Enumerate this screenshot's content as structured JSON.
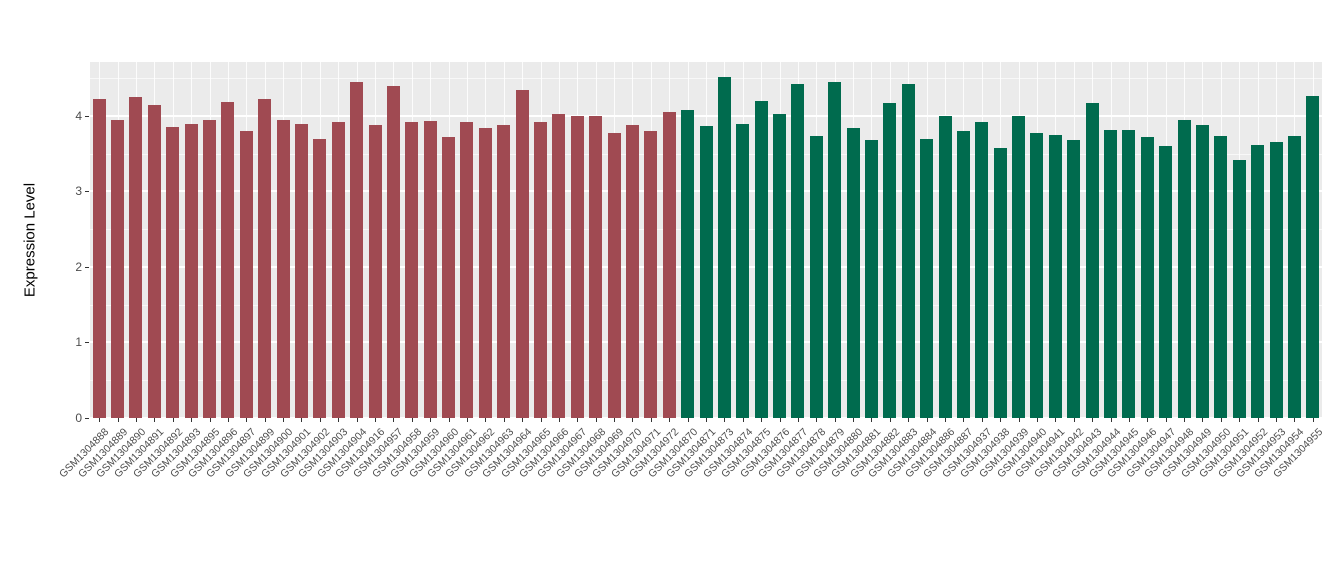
{
  "chart_data": {
    "type": "bar",
    "title": "",
    "xlabel": "",
    "ylabel": "Expression Level",
    "ylim": [
      0,
      4.715
    ],
    "yticks": [
      0,
      1,
      2,
      3,
      4
    ],
    "grid": true,
    "legend": "none",
    "panel_background": "#EBEBEB",
    "gridline_color": "#FFFFFF",
    "colors": {
      "red": "#A04A52",
      "green": "#006B4E"
    },
    "categories": [
      "GSM1304888",
      "GSM1304889",
      "GSM1304890",
      "GSM1304891",
      "GSM1304892",
      "GSM1304893",
      "GSM1304895",
      "GSM1304896",
      "GSM1304897",
      "GSM1304899",
      "GSM1304900",
      "GSM1304901",
      "GSM1304902",
      "GSM1304903",
      "GSM1304904",
      "GSM1304916",
      "GSM1304957",
      "GSM1304958",
      "GSM1304959",
      "GSM1304960",
      "GSM1304961",
      "GSM1304962",
      "GSM1304963",
      "GSM1304964",
      "GSM1304965",
      "GSM1304966",
      "GSM1304967",
      "GSM1304968",
      "GSM1304969",
      "GSM1304970",
      "GSM1304971",
      "GSM1304972",
      "GSM1304870",
      "GSM1304871",
      "GSM1304873",
      "GSM1304874",
      "GSM1304875",
      "GSM1304876",
      "GSM1304877",
      "GSM1304878",
      "GSM1304879",
      "GSM1304880",
      "GSM1304881",
      "GSM1304882",
      "GSM1304883",
      "GSM1304884",
      "GSM1304886",
      "GSM1304887",
      "GSM1304937",
      "GSM1304938",
      "GSM1304939",
      "GSM1304940",
      "GSM1304941",
      "GSM1304942",
      "GSM1304943",
      "GSM1304944",
      "GSM1304945",
      "GSM1304946",
      "GSM1304947",
      "GSM1304948",
      "GSM1304949",
      "GSM1304950",
      "GSM1304951",
      "GSM1304952",
      "GSM1304953",
      "GSM1304954",
      "GSM1304955"
    ],
    "values": [
      4.22,
      3.95,
      4.25,
      4.15,
      3.85,
      3.9,
      3.95,
      4.18,
      3.8,
      4.22,
      3.95,
      3.9,
      3.7,
      3.92,
      4.45,
      3.88,
      4.4,
      3.92,
      3.93,
      3.72,
      3.92,
      3.84,
      3.88,
      4.35,
      3.92,
      4.02,
      4.0,
      4.0,
      3.77,
      3.88,
      3.8,
      4.05,
      4.08,
      3.87,
      4.52,
      3.9,
      4.2,
      4.03,
      4.43,
      3.73,
      4.45,
      3.84,
      3.68,
      4.17,
      4.42,
      3.7,
      4.0,
      3.8,
      3.92,
      3.57,
      4.0,
      3.78,
      3.75,
      3.68,
      4.17,
      3.82,
      3.82,
      3.72,
      3.6,
      3.95,
      3.88,
      3.73,
      3.42,
      3.62,
      3.65,
      3.73,
      4.27
    ],
    "groups": [
      "red",
      "red",
      "red",
      "red",
      "red",
      "red",
      "red",
      "red",
      "red",
      "red",
      "red",
      "red",
      "red",
      "red",
      "red",
      "red",
      "red",
      "red",
      "red",
      "red",
      "red",
      "red",
      "red",
      "red",
      "red",
      "red",
      "red",
      "red",
      "red",
      "red",
      "red",
      "red",
      "green",
      "green",
      "green",
      "green",
      "green",
      "green",
      "green",
      "green",
      "green",
      "green",
      "green",
      "green",
      "green",
      "green",
      "green",
      "green",
      "green",
      "green",
      "green",
      "green",
      "green",
      "green",
      "green",
      "green",
      "green",
      "green",
      "green",
      "green",
      "green",
      "green",
      "green",
      "green",
      "green",
      "green",
      "green"
    ]
  }
}
